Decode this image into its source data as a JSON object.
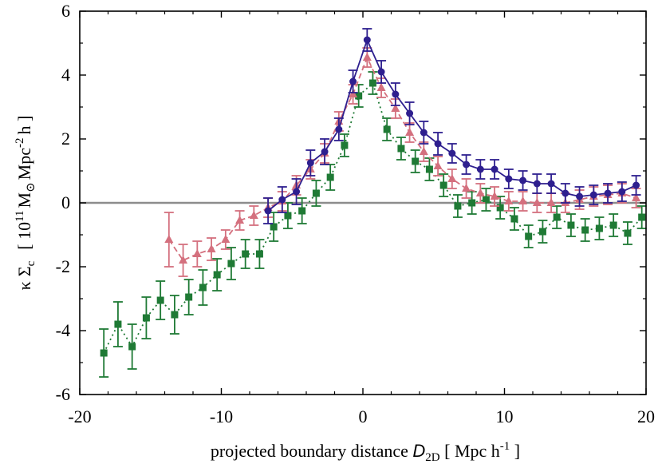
{
  "chart_data": {
    "type": "scatter",
    "title": "",
    "xlabel": {
      "prefix": "projected boundary distance  ",
      "symbol": "D",
      "sub": "2D",
      "unit_open": " [ Mpc h",
      "unit_exp": "-1",
      "unit_close": " ]"
    },
    "ylabel": {
      "kappa": "κ",
      "sigma": "Σ",
      "sigma_sub": "c",
      "bracket_open": "[ 10",
      "exp": "11",
      "msun": "M",
      "msun_sub": "⊙",
      "unit": "Mpc",
      "unit_exp": "-2",
      "h": "h ]"
    },
    "xlim": [
      -20,
      20
    ],
    "ylim": [
      -6,
      6
    ],
    "xticks": [
      -20,
      -10,
      0,
      10,
      20
    ],
    "xtick_labels": [
      "-20",
      "-10",
      "0",
      "10",
      "20"
    ],
    "yticks": [
      -6,
      -4,
      -2,
      0,
      2,
      4,
      6
    ],
    "ytick_labels": [
      "-6",
      "-4",
      "-2",
      "0",
      "2",
      "4",
      "6"
    ],
    "zero_line": true,
    "grid": false,
    "series": [
      {
        "marker": "square",
        "color": "#1f7a35",
        "line": "dotted",
        "points": [
          [
            -18.3,
            -4.7,
            0.75
          ],
          [
            -17.3,
            -3.8,
            0.7
          ],
          [
            -16.3,
            -4.5,
            0.7
          ],
          [
            -15.3,
            -3.6,
            0.65
          ],
          [
            -14.3,
            -3.05,
            0.6
          ],
          [
            -13.3,
            -3.5,
            0.6
          ],
          [
            -12.3,
            -2.95,
            0.55
          ],
          [
            -11.3,
            -2.65,
            0.55
          ],
          [
            -10.3,
            -2.25,
            0.5
          ],
          [
            -9.3,
            -1.9,
            0.5
          ],
          [
            -8.3,
            -1.6,
            0.45
          ],
          [
            -7.3,
            -1.6,
            0.45
          ],
          [
            -6.3,
            -0.75,
            0.45
          ],
          [
            -5.3,
            -0.4,
            0.4
          ],
          [
            -4.3,
            -0.25,
            0.4
          ],
          [
            -3.3,
            0.3,
            0.4
          ],
          [
            -2.3,
            0.8,
            0.4
          ],
          [
            -1.3,
            1.8,
            0.35
          ],
          [
            -0.3,
            3.35,
            0.35
          ],
          [
            0.7,
            3.75,
            0.35
          ],
          [
            1.7,
            2.3,
            0.35
          ],
          [
            2.7,
            1.7,
            0.35
          ],
          [
            3.7,
            1.3,
            0.35
          ],
          [
            4.7,
            1.05,
            0.35
          ],
          [
            5.7,
            0.55,
            0.35
          ],
          [
            6.7,
            -0.1,
            0.35
          ],
          [
            7.7,
            0.0,
            0.35
          ],
          [
            8.7,
            0.1,
            0.35
          ],
          [
            9.7,
            -0.15,
            0.35
          ],
          [
            10.7,
            -0.5,
            0.35
          ],
          [
            11.7,
            -1.05,
            0.35
          ],
          [
            12.7,
            -0.9,
            0.35
          ],
          [
            13.7,
            -0.45,
            0.35
          ],
          [
            14.7,
            -0.7,
            0.35
          ],
          [
            15.7,
            -0.85,
            0.35
          ],
          [
            16.7,
            -0.8,
            0.35
          ],
          [
            17.7,
            -0.7,
            0.35
          ],
          [
            18.7,
            -0.95,
            0.35
          ],
          [
            19.7,
            -0.45,
            0.35
          ]
        ]
      },
      {
        "marker": "triangle",
        "color": "#d4707e",
        "line": "dashed",
        "points": [
          [
            -13.7,
            -1.15,
            0.85
          ],
          [
            -12.7,
            -1.8,
            0.5
          ],
          [
            -11.7,
            -1.6,
            0.4
          ],
          [
            -10.7,
            -1.45,
            0.35
          ],
          [
            -9.7,
            -1.15,
            0.3
          ],
          [
            -8.7,
            -0.55,
            0.3
          ],
          [
            -7.7,
            -0.4,
            0.3
          ],
          [
            -6.7,
            -0.15,
            0.3
          ],
          [
            -5.7,
            0.05,
            0.3
          ],
          [
            -4.7,
            0.55,
            0.3
          ],
          [
            -3.7,
            1.05,
            0.3
          ],
          [
            -2.7,
            1.55,
            0.3
          ],
          [
            -1.7,
            2.55,
            0.3
          ],
          [
            -0.7,
            3.4,
            0.3
          ],
          [
            0.3,
            4.55,
            0.3
          ],
          [
            1.3,
            3.6,
            0.3
          ],
          [
            2.3,
            2.95,
            0.3
          ],
          [
            3.3,
            2.2,
            0.3
          ],
          [
            4.3,
            1.6,
            0.3
          ],
          [
            5.3,
            1.15,
            0.3
          ],
          [
            6.3,
            0.75,
            0.3
          ],
          [
            7.3,
            0.45,
            0.3
          ],
          [
            8.3,
            0.3,
            0.3
          ],
          [
            9.3,
            0.2,
            0.3
          ],
          [
            10.3,
            0.05,
            0.3
          ],
          [
            11.3,
            0.05,
            0.3
          ],
          [
            12.3,
            0.0,
            0.3
          ],
          [
            13.3,
            0.0,
            0.3
          ],
          [
            14.3,
            0.0,
            0.3
          ],
          [
            15.3,
            0.1,
            0.3
          ],
          [
            16.3,
            0.2,
            0.3
          ],
          [
            17.3,
            0.25,
            0.3
          ],
          [
            18.3,
            0.3,
            0.3
          ],
          [
            19.3,
            0.15,
            0.3
          ]
        ]
      },
      {
        "marker": "circle",
        "color": "#2e1f8f",
        "line": "solid",
        "points": [
          [
            -6.7,
            -0.25,
            0.4
          ],
          [
            -5.7,
            0.1,
            0.4
          ],
          [
            -4.7,
            0.35,
            0.4
          ],
          [
            -3.7,
            1.25,
            0.4
          ],
          [
            -2.7,
            1.6,
            0.4
          ],
          [
            -1.7,
            2.3,
            0.35
          ],
          [
            -0.7,
            3.8,
            0.35
          ],
          [
            0.3,
            5.1,
            0.35
          ],
          [
            1.3,
            4.1,
            0.35
          ],
          [
            2.3,
            3.4,
            0.35
          ],
          [
            3.3,
            2.8,
            0.35
          ],
          [
            4.3,
            2.2,
            0.35
          ],
          [
            5.3,
            1.85,
            0.35
          ],
          [
            6.3,
            1.55,
            0.3
          ],
          [
            7.3,
            1.2,
            0.3
          ],
          [
            8.3,
            1.05,
            0.3
          ],
          [
            9.3,
            1.05,
            0.3
          ],
          [
            10.3,
            0.75,
            0.3
          ],
          [
            11.3,
            0.7,
            0.3
          ],
          [
            12.3,
            0.6,
            0.3
          ],
          [
            13.3,
            0.6,
            0.3
          ],
          [
            14.3,
            0.3,
            0.3
          ],
          [
            15.3,
            0.2,
            0.3
          ],
          [
            16.3,
            0.25,
            0.3
          ],
          [
            17.3,
            0.3,
            0.3
          ],
          [
            18.3,
            0.35,
            0.3
          ],
          [
            19.3,
            0.55,
            0.3
          ]
        ]
      }
    ]
  }
}
